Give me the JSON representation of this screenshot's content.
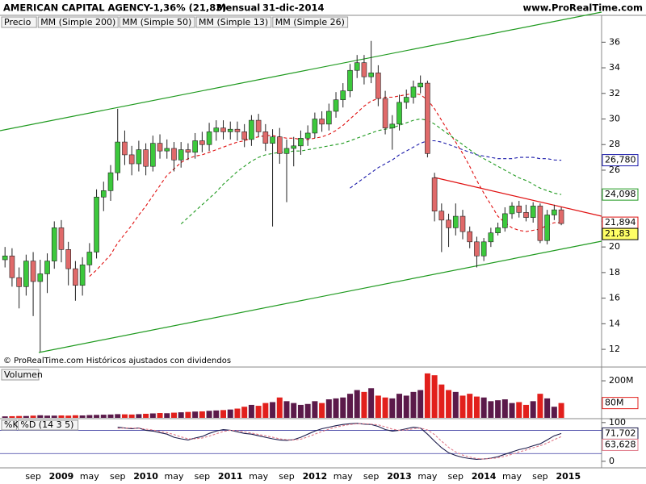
{
  "header": {
    "title": "AMERICAN CAPITAL AGENCY",
    "change": "-1,36% (21,83)",
    "period": "Mensual",
    "date": "31-dic-2014",
    "website": "www.ProRealTime.com"
  },
  "footer": "© ProRealTime.com Históricos ajustados con dividendos",
  "chart_data": [
    {
      "type": "candlestick",
      "price_name": "Precio",
      "up_color": "#3cc83c",
      "down_color": "#e06a6a",
      "categories": [
        null,
        null,
        null,
        null,
        "sep",
        null,
        null,
        null,
        "2009",
        null,
        null,
        null,
        "may",
        null,
        null,
        null,
        "sep",
        null,
        null,
        null,
        "2010",
        null,
        null,
        null,
        "may",
        null,
        null,
        null,
        "sep",
        null,
        null,
        null,
        "2011",
        null,
        null,
        null,
        "may",
        null,
        null,
        null,
        "sep",
        null,
        null,
        null,
        "2012",
        null,
        null,
        null,
        "may",
        null,
        null,
        null,
        "sep",
        null,
        null,
        null,
        "2013",
        null,
        null,
        null,
        "may",
        null,
        null,
        null,
        "sep",
        null,
        null,
        null,
        "2014",
        null,
        null,
        null,
        "may",
        null,
        null,
        null,
        "sep",
        null,
        null,
        null,
        "2015"
      ],
      "open": [
        19.0,
        19.3,
        17.6,
        16.9,
        18.9,
        17.3,
        17.9,
        18.9,
        21.5,
        19.8,
        18.3,
        17.0,
        18.6,
        19.6,
        23.9,
        24.4,
        25.8,
        28.2,
        27.2,
        26.5,
        27.6,
        26.3,
        28.1,
        27.5,
        27.7,
        26.8,
        27.6,
        27.4,
        28.3,
        28.0,
        29.0,
        29.3,
        29.0,
        29.2,
        29.0,
        28.4,
        29.9,
        29.0,
        28.1,
        28.6,
        27.3,
        27.7,
        27.9,
        28.5,
        28.9,
        30.0,
        29.6,
        30.6,
        31.5,
        32.2,
        33.8,
        34.4,
        33.3,
        33.6,
        31.6,
        29.3,
        29.6,
        31.3,
        31.7,
        32.5,
        32.8,
        25.4,
        22.8,
        22.1,
        21.5,
        22.4,
        21.2,
        20.4,
        19.3,
        20.4,
        21.1,
        21.5,
        22.6,
        23.2,
        22.7,
        22.3,
        23.2,
        20.5,
        22.5,
        22.9,
        null
      ],
      "high": [
        20.0,
        19.9,
        18.4,
        19.4,
        19.6,
        19.0,
        19.5,
        22.0,
        22.1,
        20.4,
        18.9,
        19.2,
        20.3,
        24.5,
        25.1,
        26.4,
        30.8,
        29.1,
        27.9,
        28.3,
        28.1,
        28.7,
        28.8,
        28.4,
        28.2,
        28.2,
        28.1,
        28.9,
        29.0,
        29.7,
        29.9,
        29.9,
        29.8,
        29.8,
        29.6,
        30.3,
        30.4,
        29.6,
        29.2,
        29.3,
        28.4,
        28.6,
        29.1,
        29.5,
        30.5,
        30.6,
        31.2,
        32.1,
        32.8,
        34.3,
        35.0,
        35.0,
        36.1,
        34.2,
        32.2,
        30.3,
        31.9,
        32.3,
        33.0,
        33.4,
        33.0,
        25.8,
        23.4,
        22.6,
        23.4,
        22.9,
        21.6,
        20.8,
        20.7,
        21.5,
        21.9,
        23.1,
        23.5,
        23.6,
        23.3,
        23.5,
        23.4,
        22.9,
        23.3,
        23.1,
        null
      ],
      "low": [
        18.4,
        16.9,
        15.2,
        16.2,
        14.6,
        11.8,
        16.4,
        18.3,
        18.8,
        17.0,
        15.8,
        16.2,
        18.0,
        19.1,
        22.8,
        23.6,
        25.2,
        26.4,
        25.6,
        25.9,
        25.6,
        25.9,
        26.9,
        26.9,
        25.9,
        26.2,
        26.8,
        26.9,
        27.4,
        27.5,
        28.3,
        28.4,
        28.4,
        28.3,
        27.8,
        27.9,
        28.6,
        27.5,
        21.6,
        26.5,
        23.5,
        26.3,
        27.2,
        27.9,
        28.5,
        29.0,
        29.1,
        30.1,
        30.9,
        31.7,
        33.2,
        32.7,
        32.8,
        31.0,
        28.8,
        27.6,
        29.1,
        30.8,
        31.2,
        32.0,
        27.0,
        22.0,
        19.6,
        20.0,
        20.9,
        20.6,
        19.9,
        18.4,
        18.9,
        20.0,
        20.9,
        21.2,
        22.2,
        22.3,
        22.0,
        21.9,
        20.3,
        20.2,
        22.1,
        21.7,
        null
      ],
      "close": [
        19.3,
        17.6,
        16.9,
        18.9,
        17.3,
        17.9,
        18.9,
        21.5,
        19.8,
        18.3,
        17.0,
        18.6,
        19.6,
        23.9,
        24.4,
        25.8,
        28.2,
        27.2,
        26.5,
        27.6,
        26.3,
        28.1,
        27.5,
        27.7,
        26.8,
        27.6,
        27.4,
        28.3,
        28.0,
        29.0,
        29.3,
        29.0,
        29.2,
        29.0,
        28.4,
        29.9,
        29.0,
        28.1,
        28.6,
        27.3,
        27.7,
        27.9,
        28.5,
        28.9,
        30.0,
        29.6,
        30.6,
        31.5,
        32.2,
        33.8,
        34.4,
        33.3,
        33.6,
        31.6,
        29.3,
        29.6,
        31.3,
        31.7,
        32.5,
        32.8,
        27.3,
        22.8,
        22.1,
        21.5,
        22.4,
        21.2,
        20.4,
        19.3,
        20.4,
        21.1,
        21.5,
        22.6,
        23.2,
        22.7,
        22.3,
        23.2,
        20.5,
        22.5,
        22.9,
        21.83,
        null
      ],
      "series": [
        {
          "name": "MM (Simple 200)",
          "color": "#333333"
        },
        {
          "name": "MM (Simple 50)",
          "color": "#1a1aaa",
          "values": [
            null,
            null,
            null,
            null,
            null,
            null,
            null,
            null,
            null,
            null,
            null,
            null,
            null,
            null,
            null,
            null,
            null,
            null,
            null,
            null,
            null,
            null,
            null,
            null,
            null,
            null,
            null,
            null,
            null,
            null,
            null,
            null,
            null,
            null,
            null,
            null,
            null,
            null,
            null,
            null,
            null,
            null,
            null,
            null,
            null,
            null,
            null,
            null,
            null,
            24.6,
            25.0,
            25.4,
            25.8,
            26.2,
            26.5,
            26.8,
            27.2,
            27.5,
            27.8,
            28.1,
            28.3,
            28.3,
            28.2,
            28.0,
            27.8,
            27.6,
            27.4,
            27.2,
            27.1,
            27.0,
            26.9,
            26.9,
            26.9,
            27.0,
            27.0,
            27.0,
            26.9,
            26.9,
            26.8,
            26.78,
            null
          ]
        },
        {
          "name": "MM (Simple 13)",
          "color": "#e01010",
          "values": [
            null,
            null,
            null,
            null,
            null,
            null,
            null,
            null,
            null,
            null,
            null,
            null,
            17.7,
            18.2,
            18.8,
            19.4,
            20.3,
            21.0,
            21.7,
            22.5,
            23.2,
            24.0,
            24.8,
            25.6,
            26.1,
            26.6,
            26.9,
            27.1,
            27.2,
            27.4,
            27.6,
            27.8,
            28.0,
            28.2,
            28.3,
            28.5,
            28.6,
            28.7,
            28.7,
            28.6,
            28.5,
            28.5,
            28.4,
            28.4,
            28.5,
            28.6,
            28.8,
            29.1,
            29.5,
            30.0,
            30.5,
            31.0,
            31.4,
            31.6,
            31.7,
            31.7,
            31.8,
            31.9,
            32.0,
            31.9,
            31.5,
            30.8,
            29.9,
            29.0,
            28.2,
            27.3,
            26.3,
            25.2,
            24.2,
            23.3,
            22.4,
            21.9,
            21.5,
            21.3,
            21.2,
            21.3,
            21.4,
            21.7,
            21.9,
            21.894,
            null
          ]
        },
        {
          "name": "MM (Simple 26)",
          "color": "#1f9a1f",
          "values": [
            null,
            null,
            null,
            null,
            null,
            null,
            null,
            null,
            null,
            null,
            null,
            null,
            null,
            null,
            null,
            null,
            null,
            null,
            null,
            null,
            null,
            null,
            null,
            null,
            null,
            21.8,
            22.3,
            22.8,
            23.3,
            23.8,
            24.3,
            24.9,
            25.4,
            25.9,
            26.3,
            26.7,
            27.0,
            27.2,
            27.3,
            27.4,
            27.4,
            27.5,
            27.5,
            27.6,
            27.7,
            27.8,
            27.9,
            28.0,
            28.1,
            28.3,
            28.5,
            28.7,
            28.9,
            29.1,
            29.2,
            29.3,
            29.5,
            29.7,
            29.9,
            30.0,
            29.9,
            29.6,
            29.2,
            28.8,
            28.4,
            28.0,
            27.6,
            27.2,
            26.9,
            26.6,
            26.3,
            26.0,
            25.7,
            25.4,
            25.2,
            24.9,
            24.6,
            24.4,
            24.2,
            24.098,
            null
          ]
        }
      ],
      "ylim": [
        11.5,
        38.1
      ],
      "yticks": [
        12,
        14,
        16,
        18,
        20,
        22,
        24,
        26,
        28,
        30,
        32,
        34,
        36
      ],
      "value_tags": [
        {
          "value": 26.78,
          "label": "26,780",
          "color": "#1a1aaa",
          "background": "#ffffff"
        },
        {
          "value": 24.098,
          "label": "24,098",
          "color": "#1f9a1f",
          "background": "#ffffff"
        },
        {
          "value": 21.894,
          "label": "21,894",
          "color": "#e01010",
          "background": "#ffffff"
        },
        {
          "value": 21.83,
          "label": "21,83",
          "color": "#000000",
          "background": "#ffff66"
        }
      ]
    },
    {
      "type": "volume",
      "title": "Volumen",
      "up_color": "#5b1a4a",
      "down_color": "#e2201c",
      "values": [
        8,
        9,
        10,
        10,
        12,
        14,
        12,
        12,
        13,
        12,
        14,
        13,
        15,
        16,
        17,
        18,
        20,
        19,
        18,
        20,
        22,
        24,
        26,
        25,
        28,
        30,
        32,
        34,
        35,
        38,
        40,
        42,
        45,
        50,
        60,
        70,
        65,
        80,
        85,
        110,
        90,
        80,
        70,
        75,
        90,
        80,
        100,
        105,
        110,
        130,
        150,
        140,
        160,
        120,
        110,
        105,
        130,
        120,
        140,
        150,
        240,
        230,
        180,
        150,
        140,
        120,
        130,
        115,
        110,
        90,
        95,
        100,
        80,
        85,
        70,
        90,
        130,
        105,
        60,
        80,
        null
      ],
      "ylim": [
        0,
        270
      ],
      "yticks": [
        {
          "value": 200,
          "label": "200M"
        }
      ],
      "value_tags": [
        {
          "value": 80,
          "label": "80M",
          "color": "#e2201c",
          "background": "#ffffff"
        }
      ]
    },
    {
      "type": "stochastic",
      "series": [
        {
          "name": "%K",
          "color": "#1a1a4a",
          "values": [
            null,
            null,
            null,
            null,
            null,
            null,
            null,
            null,
            null,
            null,
            null,
            null,
            null,
            null,
            null,
            null,
            88,
            86,
            84,
            86,
            80,
            78,
            74,
            70,
            62,
            58,
            55,
            60,
            64,
            72,
            78,
            82,
            80,
            76,
            72,
            70,
            66,
            62,
            58,
            55,
            54,
            56,
            62,
            70,
            78,
            84,
            88,
            92,
            95,
            97,
            98,
            96,
            95,
            90,
            82,
            78,
            80,
            84,
            88,
            86,
            70,
            52,
            35,
            22,
            15,
            10,
            7,
            5,
            6,
            8,
            12,
            18,
            24,
            30,
            34,
            40,
            45,
            55,
            66,
            71.702,
            null
          ]
        },
        {
          "name": "%D (14 3 5)",
          "color": "#e07a8a",
          "values": [
            null,
            null,
            null,
            null,
            null,
            null,
            null,
            null,
            null,
            null,
            null,
            null,
            null,
            null,
            null,
            null,
            85,
            86,
            86,
            85,
            83,
            81,
            77,
            74,
            69,
            63,
            58,
            58,
            60,
            65,
            71,
            77,
            80,
            79,
            76,
            73,
            69,
            66,
            62,
            58,
            56,
            55,
            57,
            63,
            70,
            77,
            83,
            88,
            92,
            95,
            97,
            97,
            96,
            94,
            89,
            83,
            80,
            81,
            84,
            86,
            81,
            69,
            52,
            36,
            24,
            16,
            11,
            7,
            6,
            7,
            9,
            13,
            18,
            24,
            29,
            35,
            40,
            47,
            56,
            63.628,
            null
          ]
        }
      ],
      "ylim": [
        -17,
        108
      ],
      "yticks": [
        100,
        0
      ],
      "levels": [
        80,
        20
      ],
      "value_tags": [
        {
          "value": 71.702,
          "label": "71,702",
          "color": "#1a1a4a",
          "background": "#ffffff"
        },
        {
          "value": 63.628,
          "label": "63,628",
          "color": "#e07a8a",
          "background": "#ffffff"
        }
      ]
    }
  ]
}
